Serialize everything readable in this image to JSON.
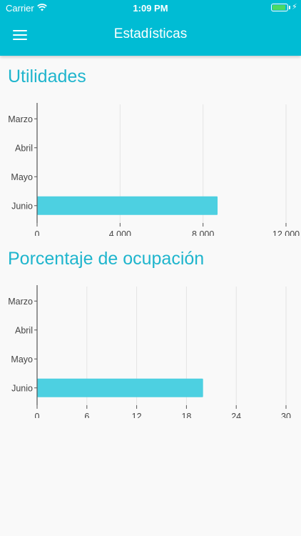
{
  "status_bar": {
    "carrier": "Carrier",
    "time": "1:09 PM"
  },
  "header": {
    "title": "Estadísticas",
    "menu_icon": "hamburger-menu-icon"
  },
  "colors": {
    "header": "#00bcd4",
    "section_title": "#1fb5cd",
    "bar": "#4dd0e1",
    "grid": "#e4e4e4"
  },
  "sections": [
    {
      "title": "Utilidades",
      "chart_data": {
        "type": "bar",
        "orientation": "horizontal",
        "categories": [
          "Marzo",
          "Abril",
          "Mayo",
          "Junio"
        ],
        "values": [
          0,
          0,
          0,
          8700
        ],
        "xlim": [
          0,
          12000
        ],
        "ticks": [
          0,
          4000,
          8000,
          12000
        ],
        "tick_labels": [
          "0",
          "4,000",
          "8,000",
          "12,000"
        ],
        "grid": true
      }
    },
    {
      "title": "Porcentaje de ocupación",
      "chart_data": {
        "type": "bar",
        "orientation": "horizontal",
        "categories": [
          "Marzo",
          "Abril",
          "Mayo",
          "Junio"
        ],
        "values": [
          0,
          0,
          0,
          20
        ],
        "xlim": [
          0,
          30
        ],
        "ticks": [
          0,
          6,
          12,
          18,
          24,
          30
        ],
        "tick_labels": [
          "0",
          "6",
          "12",
          "18",
          "24",
          "30"
        ],
        "grid": true
      }
    }
  ]
}
